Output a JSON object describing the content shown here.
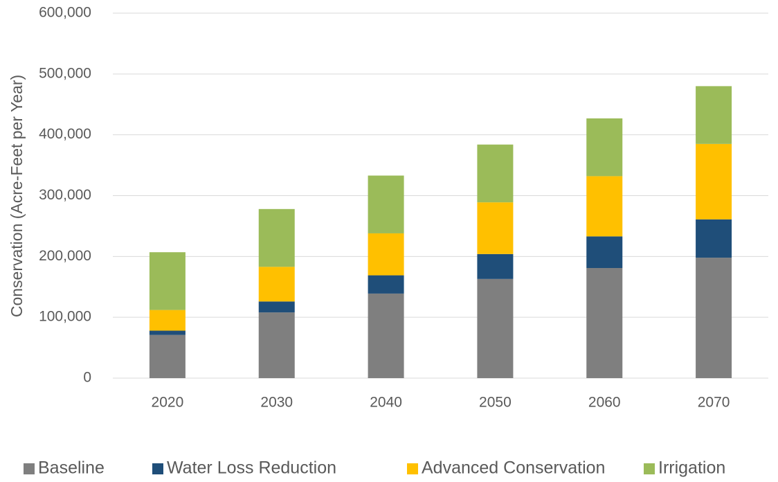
{
  "chart_data": {
    "type": "stacked_bar",
    "y_label": "Conservation (Acre-Feet per Year)",
    "categories": [
      "2020",
      "2030",
      "2040",
      "2050",
      "2060",
      "2070"
    ],
    "series": [
      {
        "name": "Baseline",
        "color": "#7f7f7f",
        "values": [
          71000,
          108000,
          139000,
          163000,
          181000,
          198000
        ]
      },
      {
        "name": "Water Loss Reduction",
        "color": "#1f4e79",
        "values": [
          7000,
          18000,
          30000,
          41000,
          52000,
          63000
        ]
      },
      {
        "name": "Advanced Conservation",
        "color": "#ffc000",
        "values": [
          34000,
          57000,
          69000,
          85000,
          99000,
          124000
        ]
      },
      {
        "name": "Irrigation",
        "color": "#9bbb59",
        "values": [
          95000,
          95000,
          95000,
          95000,
          95000,
          95000
        ]
      }
    ],
    "ylim": [
      0,
      600000
    ],
    "yticks": [
      0,
      {
        "value": 100000,
        "label": "100,000"
      },
      {
        "value": 200000,
        "label": "200,000"
      },
      {
        "value": 300000,
        "label": "300,000"
      },
      {
        "value": 400000,
        "label": "400,000"
      },
      {
        "value": 500000,
        "label": "500,000"
      },
      {
        "value": 600000,
        "label": "600,000"
      }
    ],
    "grid": true,
    "legend": "bottom"
  }
}
